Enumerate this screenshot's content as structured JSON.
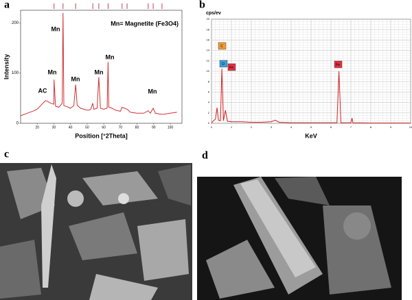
{
  "chart_data": [
    {
      "type": "line",
      "xlabel": "Position [°2Theta]",
      "ylabel": "Intensity",
      "annotation": "Mn= Magnetite (Fe3O4)",
      "peak_labels": [
        "AC",
        "Mn",
        "Mn",
        "Mn",
        "Mn",
        "Mn",
        "Mn"
      ],
      "x": [
        10,
        14,
        18,
        20,
        22,
        24,
        25,
        26,
        28,
        30,
        30.1,
        31,
        33,
        35,
        35.5,
        36,
        38,
        40,
        42,
        43.1,
        44,
        46,
        48,
        50,
        52,
        53.4,
        54,
        56,
        57,
        58,
        60,
        62,
        62.6,
        63,
        65,
        67,
        70,
        71,
        74,
        76,
        80,
        84,
        86.7,
        88,
        89.7,
        91,
        94,
        96,
        100,
        104
      ],
      "series": [
        {
          "color": "#d03030",
          "values": [
            15,
            20,
            25,
            28,
            35,
            42,
            45,
            44,
            40,
            38,
            87,
            34,
            32,
            40,
            220,
            35,
            33,
            30,
            35,
            77,
            36,
            30,
            28,
            26,
            27,
            40,
            28,
            30,
            92,
            30,
            28,
            30,
            122,
            32,
            30,
            26,
            24,
            32,
            28,
            22,
            20,
            20,
            25,
            20,
            30,
            20,
            18,
            18,
            20,
            22
          ]
        }
      ],
      "reference_peaks": [
        30.1,
        35.5,
        43.1,
        53.4,
        57,
        62.6,
        71,
        74,
        86.7,
        89.7,
        95
      ],
      "reference_color": "#c04050",
      "xlim": [
        10,
        107
      ],
      "xticks": [
        20,
        30,
        40,
        50,
        60,
        70,
        80,
        90,
        100
      ],
      "ylim": [
        0,
        225
      ],
      "yticks": [
        0,
        100,
        200
      ],
      "grid": false
    },
    {
      "type": "line",
      "xlabel": "KeV",
      "ylabel": "cps/ev",
      "peak_labels": [
        {
          "text": "C",
          "color": "#f09a3a"
        },
        {
          "text": "O",
          "color": "#3aa0d8"
        },
        {
          "text": "Fe",
          "color": "#e03040"
        },
        {
          "text": "Fe",
          "color": "#e03040"
        }
      ],
      "x": [
        0,
        0.1,
        0.2,
        0.28,
        0.35,
        0.45,
        0.52,
        0.6,
        0.7,
        0.8,
        1,
        1.5,
        2,
        2.5,
        3,
        3.2,
        3.4,
        4,
        5,
        6,
        6.3,
        6.4,
        6.5,
        7,
        7.06,
        7.1,
        8,
        9,
        10
      ],
      "series": [
        {
          "color": "#d02020",
          "values": [
            0,
            0.5,
            0.8,
            3,
            0.6,
            0.5,
            10.5,
            0.5,
            2.5,
            0.4,
            0.3,
            0.3,
            0.2,
            0.2,
            0.3,
            0.6,
            0.2,
            0.1,
            0.1,
            0.1,
            0.1,
            10,
            0.1,
            0.1,
            1,
            0.1,
            0.05,
            0.05,
            0.05
          ]
        }
      ],
      "xlim": [
        0,
        10
      ],
      "xticks": [
        0,
        1,
        2,
        3,
        4,
        5,
        6,
        7,
        8,
        9,
        10
      ],
      "ylim": [
        0,
        20
      ],
      "yticks": [
        0,
        2,
        4,
        6,
        8,
        10,
        12,
        14,
        16,
        18,
        20
      ],
      "grid": true
    }
  ],
  "panel_labels": [
    "a",
    "b",
    "c",
    "d"
  ]
}
